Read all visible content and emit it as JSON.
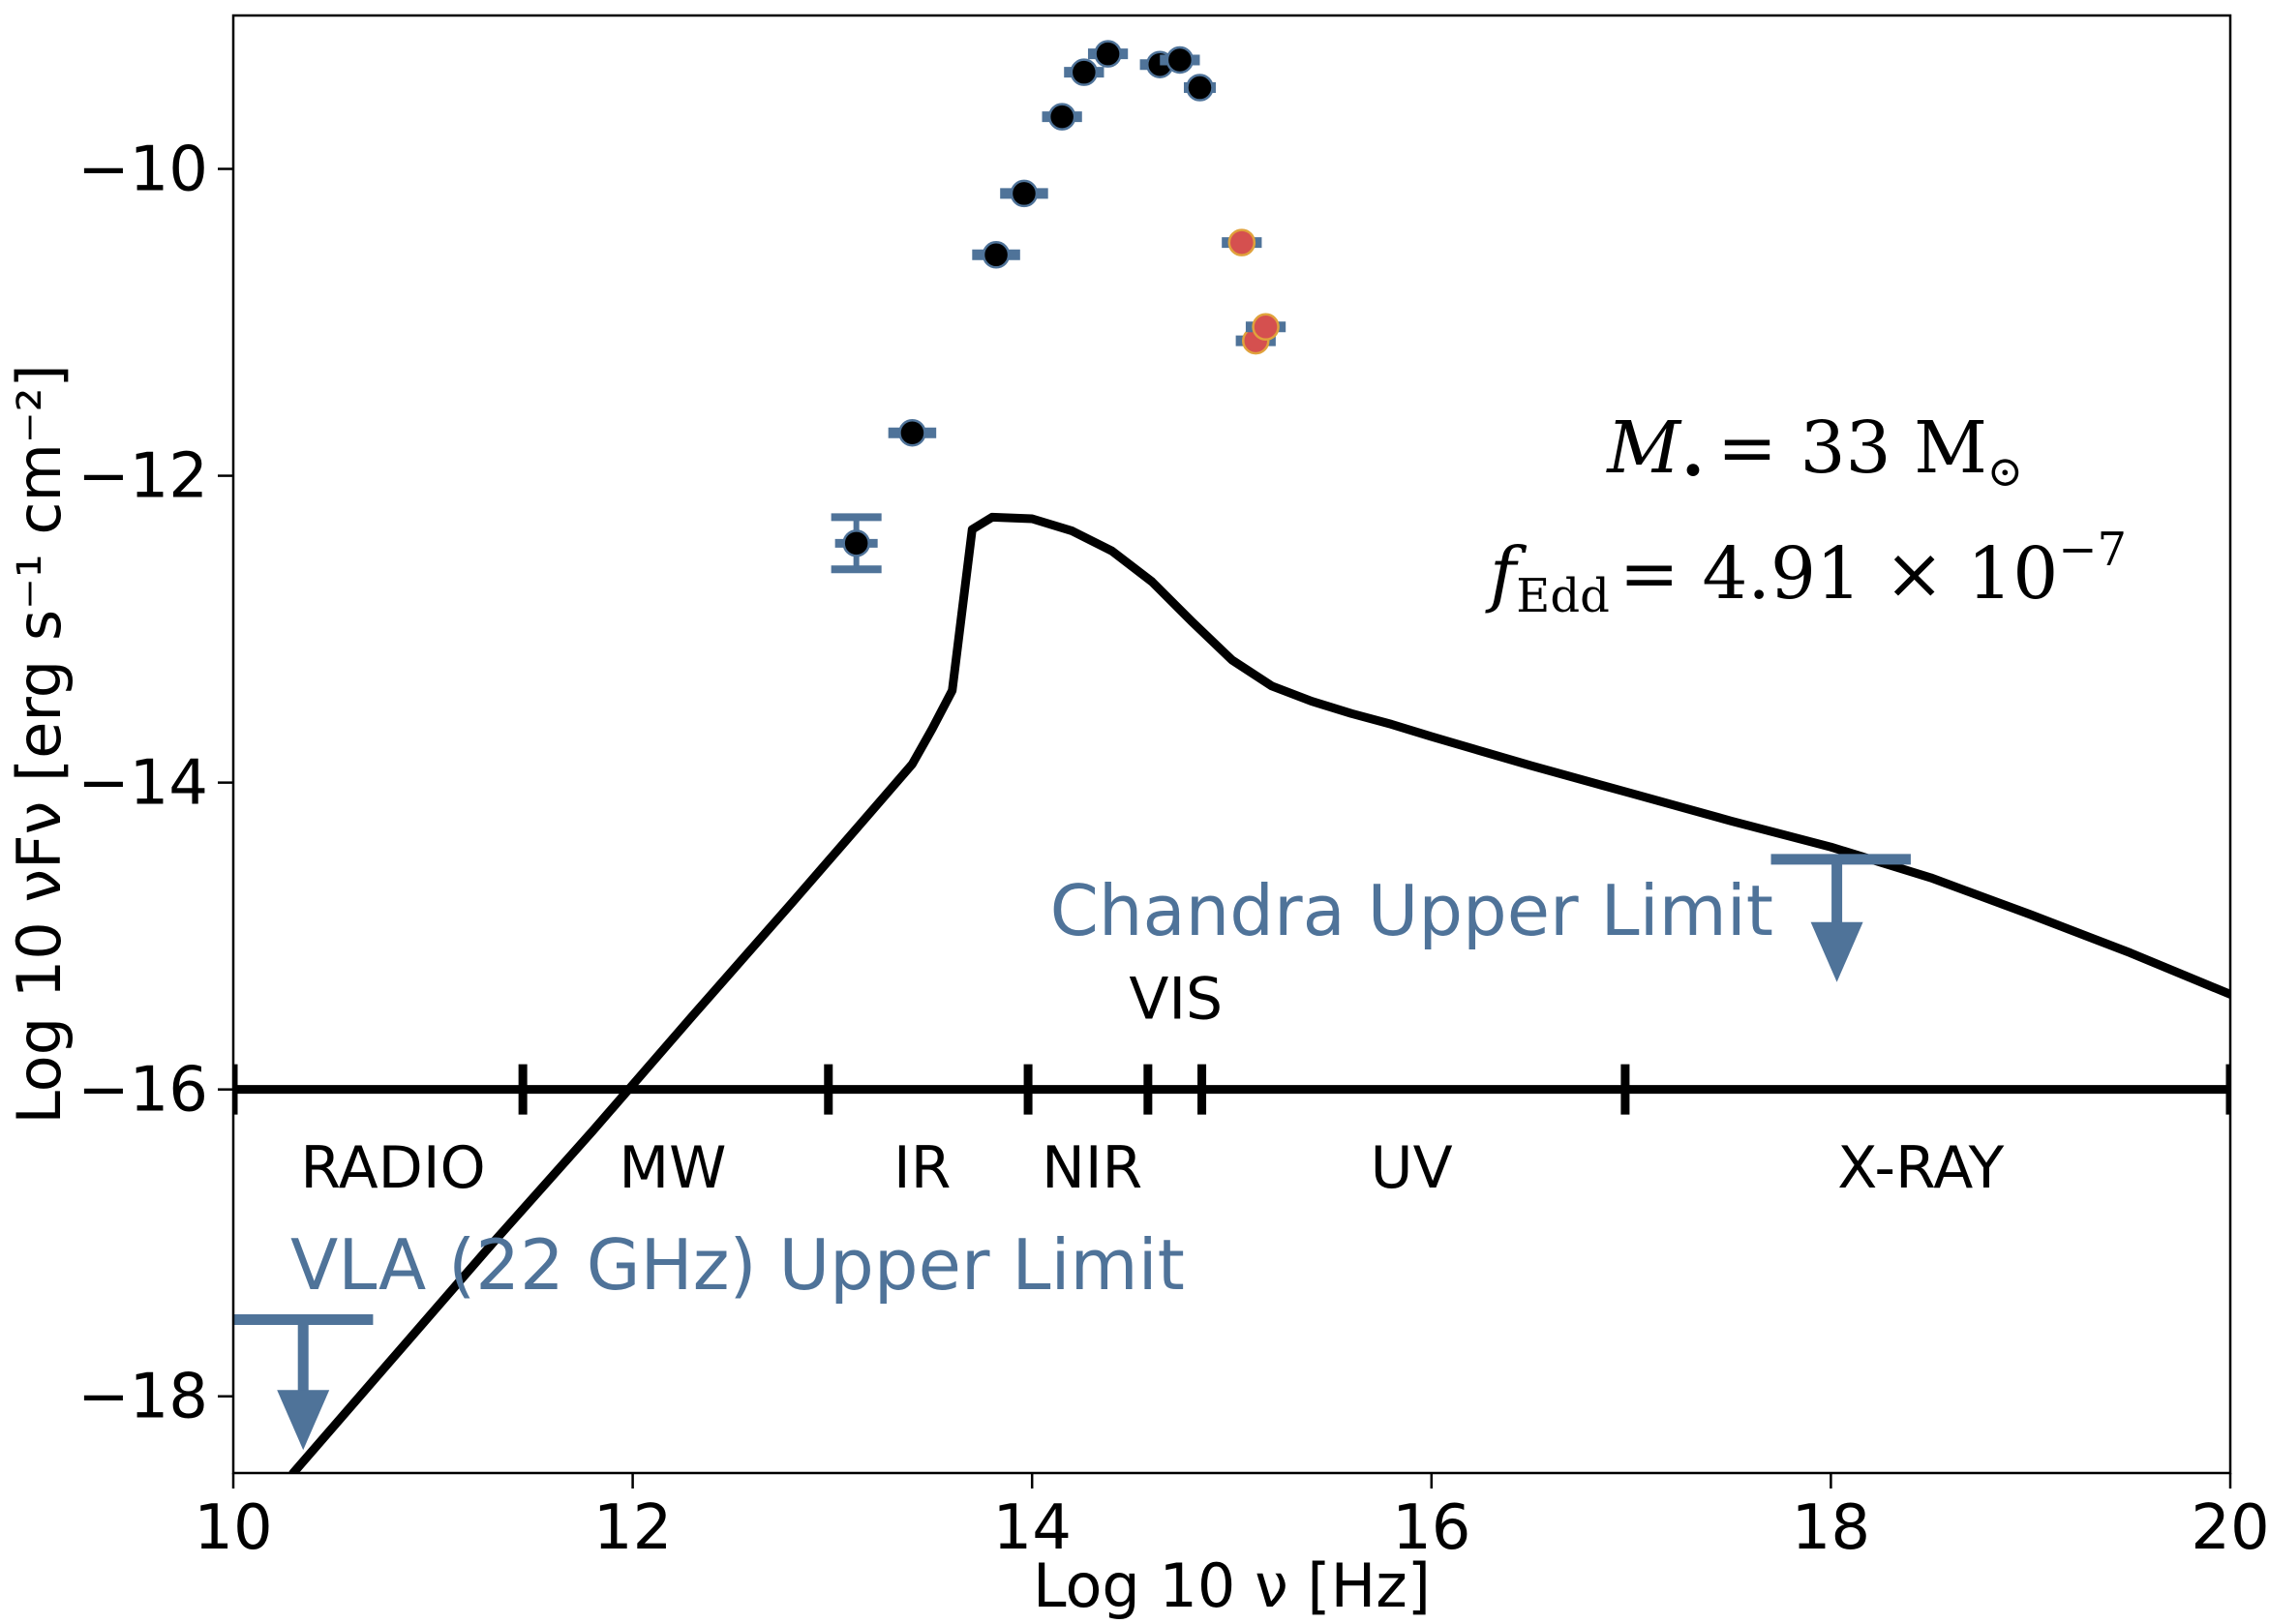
{
  "colors": {
    "upper_limit": "#4f7399",
    "errbar": "#4f7399",
    "dark_point": "#000000",
    "red_point": "#d5504f",
    "red_edge": "#e0a23c",
    "model": "#000000"
  },
  "chart_data": {
    "type": "scatter",
    "xlabel": "Log 10 ν [Hz]",
    "ylabel": "Log 10 νFν [erg s⁻¹ cm⁻²]",
    "xlim": [
      10,
      20
    ],
    "ylim": [
      -18.5,
      -9.0
    ],
    "xticks": [
      10,
      12,
      14,
      16,
      18,
      20
    ],
    "xtick_labels": [
      "10",
      "12",
      "14",
      "16",
      "18",
      "20"
    ],
    "yticks": [
      -10,
      -12,
      -14,
      -16,
      -18
    ],
    "ytick_labels": [
      "−10",
      "−12",
      "−14",
      "−16",
      "−18"
    ],
    "series": [
      {
        "name": "Observed (black)",
        "x": [
          13.12,
          13.4,
          13.82,
          13.96,
          14.15,
          14.26,
          14.38,
          14.64,
          14.74,
          14.84
        ],
        "y": [
          -12.44,
          -11.72,
          -10.56,
          -10.16,
          -9.66,
          -9.37,
          -9.25,
          -9.32,
          -9.29,
          -9.47
        ],
        "xerr": [
          0.0,
          0.12,
          0.12,
          0.12,
          0.1,
          0.1,
          0.1,
          0.1,
          0.1,
          0.08
        ],
        "yerr": [
          0.17,
          0.0,
          0.0,
          0.0,
          0.0,
          0.0,
          0.0,
          0.0,
          0.0,
          0.0
        ]
      },
      {
        "name": "Observed (red)",
        "x": [
          15.05,
          15.12,
          15.17
        ],
        "y": [
          -10.48,
          -11.12,
          -11.03
        ],
        "xerr": [
          0.1,
          0.1,
          0.1
        ],
        "yerr": [
          0.0,
          0.0,
          0.0
        ]
      }
    ],
    "model_curve": {
      "name": "Model SED",
      "x": [
        10.3,
        10.8,
        11.3,
        11.8,
        12.3,
        12.8,
        13.2,
        13.4,
        13.5,
        13.6,
        13.7,
        13.8,
        14.0,
        14.2,
        14.4,
        14.6,
        14.8,
        15.0,
        15.2,
        15.4,
        15.6,
        15.8,
        16.0,
        16.5,
        17.0,
        17.5,
        18.0,
        18.5,
        19.0,
        19.5,
        20.0
      ],
      "y": [
        -18.5,
        -17.75,
        -17.0,
        -16.27,
        -15.52,
        -14.78,
        -14.18,
        -13.88,
        -13.65,
        -13.4,
        -12.35,
        -12.27,
        -12.28,
        -12.36,
        -12.49,
        -12.69,
        -12.95,
        -13.2,
        -13.37,
        -13.47,
        -13.55,
        -13.62,
        -13.7,
        -13.89,
        -14.07,
        -14.25,
        -14.42,
        -14.62,
        -14.86,
        -15.11,
        -15.38
      ]
    },
    "upper_limits": [
      {
        "label": "VLA (22 GHz) Upper Limit",
        "x": 10.35,
        "y": -17.5,
        "bar_xmin": 10.0,
        "bar_xmax": 10.7,
        "arrow_to": -18.35
      },
      {
        "label": "Chandra Upper Limit",
        "x": 18.03,
        "y": -14.5,
        "bar_xmin": 17.7,
        "bar_xmax": 18.4,
        "arrow_to": -15.3
      }
    ],
    "bands": {
      "y": -16,
      "boundaries": [
        10,
        11.45,
        12.98,
        13.98,
        14.58,
        14.85,
        16.97,
        20
      ],
      "labels": [
        {
          "text": "RADIO",
          "x": 10.8,
          "y": -16.5
        },
        {
          "text": "MW",
          "x": 12.2,
          "y": -16.5
        },
        {
          "text": "IR",
          "x": 13.45,
          "y": -16.5
        },
        {
          "text": "NIR",
          "x": 14.3,
          "y": -16.5
        },
        {
          "text": "VIS",
          "x": 14.72,
          "y": -15.4
        },
        {
          "text": "UV",
          "x": 15.9,
          "y": -16.5
        },
        {
          "text": "X-RAY",
          "x": 18.45,
          "y": -16.5
        }
      ]
    },
    "annotations": {
      "mass_lhs": "M",
      "mass_sub": "•",
      "mass_rhs": "= 33 M",
      "mass_unit_sub": "⊙",
      "fedd_lhs": "f",
      "fedd_sub": "Edd",
      "fedd_rhs": "= 4.91 × 10",
      "fedd_exp": "−7"
    }
  }
}
